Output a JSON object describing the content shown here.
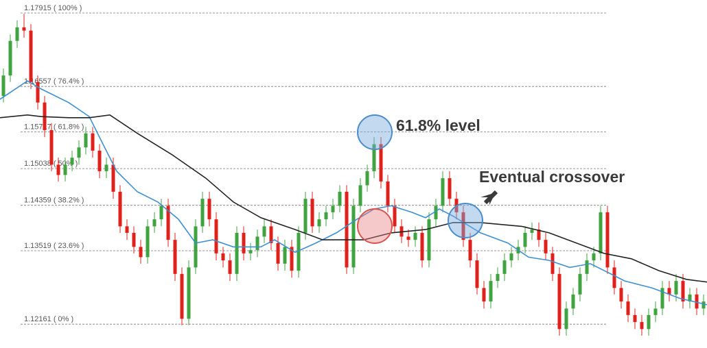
{
  "chart_data": {
    "type": "candlestick",
    "up_color": "#3fa33f",
    "down_color": "#e0201b",
    "xlim": [
      -0.5,
      102.5
    ],
    "ylim": [
      1.1172,
      1.18156
    ],
    "yticks": [
      {
        "value": 1.17915,
        "label": "1.17915 ( 100% )"
      },
      {
        "value": 1.16557,
        "label": "1.16557 ( 76.4% )"
      },
      {
        "value": 1.15717,
        "label": "1.15717 ( 61.8% )"
      },
      {
        "value": 1.15038,
        "label": "1.15038 ( 50% )"
      },
      {
        "value": 1.14359,
        "label": "1.14359 ( 38.2% )"
      },
      {
        "value": 1.13519,
        "label": "1.13519 ( 23.6% )"
      },
      {
        "value": 1.12161,
        "label": "1.12161 ( 0% )"
      }
    ],
    "open": [
      1.1638,
      1.1676,
      1.174,
      1.1765,
      1.1759,
      1.1664,
      1.1626,
      1.1575,
      1.1511,
      1.1492,
      1.1511,
      1.1524,
      1.1543,
      1.1569,
      1.1537,
      1.1499,
      1.1511,
      1.1461,
      1.1397,
      1.1385,
      1.1359,
      1.134,
      1.1397,
      1.141,
      1.1435,
      1.1372,
      1.1309,
      1.1226,
      1.1321,
      1.1397,
      1.1448,
      1.141,
      1.1347,
      1.1334,
      1.1309,
      1.1385,
      1.1347,
      1.1353,
      1.1378,
      1.1397,
      1.1366,
      1.1328,
      1.1359,
      1.1315,
      1.1385,
      1.1448,
      1.1397,
      1.141,
      1.1423,
      1.1435,
      1.1461,
      1.1321,
      1.1435,
      1.1473,
      1.1499,
      1.1549,
      1.148,
      1.1435,
      1.1397,
      1.1378,
      1.1372,
      1.1385,
      1.1334,
      1.141,
      1.1435,
      1.1486,
      1.1448,
      1.1423,
      1.1372,
      1.1334,
      1.1283,
      1.1258,
      1.1296,
      1.1309,
      1.1334,
      1.1347,
      1.1359,
      1.1385,
      1.1391,
      1.1372,
      1.1347,
      1.1309,
      1.1207,
      1.1245,
      1.1271,
      1.1309,
      1.1334,
      1.1347,
      1.1423,
      1.1321,
      1.1283,
      1.1258,
      1.1233,
      1.122,
      1.1207,
      1.1233,
      1.1245,
      1.1283,
      1.1271,
      1.1296,
      1.1258,
      1.1271,
      1.1245
    ],
    "high": [
      1.1689,
      1.1752,
      1.1778,
      1.179,
      1.1771,
      1.1676,
      1.1638,
      1.1588,
      1.1524,
      1.1524,
      1.1537,
      1.1556,
      1.1581,
      1.1581,
      1.1549,
      1.1524,
      1.1524,
      1.1473,
      1.141,
      1.1397,
      1.1372,
      1.141,
      1.1423,
      1.1448,
      1.1448,
      1.1385,
      1.1321,
      1.1334,
      1.141,
      1.1461,
      1.1461,
      1.1423,
      1.1359,
      1.1347,
      1.1397,
      1.1397,
      1.1366,
      1.1391,
      1.141,
      1.141,
      1.1378,
      1.1372,
      1.1372,
      1.1397,
      1.1461,
      1.1461,
      1.1423,
      1.1435,
      1.1448,
      1.1473,
      1.1473,
      1.1448,
      1.1486,
      1.1511,
      1.1562,
      1.1562,
      1.1492,
      1.1448,
      1.141,
      1.1391,
      1.1397,
      1.1397,
      1.1423,
      1.1448,
      1.1499,
      1.1499,
      1.1461,
      1.1435,
      1.1385,
      1.1347,
      1.1296,
      1.1309,
      1.1321,
      1.1347,
      1.1359,
      1.1372,
      1.1397,
      1.1404,
      1.1404,
      1.1385,
      1.1359,
      1.1321,
      1.1258,
      1.1283,
      1.1321,
      1.1347,
      1.1359,
      1.1435,
      1.1435,
      1.1334,
      1.1296,
      1.1271,
      1.1245,
      1.1233,
      1.1245,
      1.1258,
      1.1296,
      1.1296,
      1.1309,
      1.1309,
      1.1283,
      1.1283,
      1.1271
    ],
    "low": [
      1.1626,
      1.1664,
      1.1727,
      1.1746,
      1.1651,
      1.1613,
      1.1562,
      1.1499,
      1.148,
      1.148,
      1.1499,
      1.1511,
      1.153,
      1.1524,
      1.1486,
      1.1486,
      1.1448,
      1.1385,
      1.1372,
      1.1347,
      1.1328,
      1.1328,
      1.1385,
      1.1397,
      1.1359,
      1.1296,
      1.1214,
      1.1214,
      1.1309,
      1.1385,
      1.1397,
      1.1334,
      1.1321,
      1.1296,
      1.1296,
      1.1334,
      1.1334,
      1.134,
      1.1366,
      1.1353,
      1.1315,
      1.1315,
      1.1302,
      1.1302,
      1.1372,
      1.1385,
      1.1385,
      1.1397,
      1.141,
      1.1423,
      1.1309,
      1.1309,
      1.1423,
      1.1461,
      1.1486,
      1.1467,
      1.1423,
      1.1385,
      1.1366,
      1.1359,
      1.1359,
      1.1321,
      1.1321,
      1.1397,
      1.1423,
      1.1435,
      1.141,
      1.1359,
      1.1321,
      1.1271,
      1.1245,
      1.1245,
      1.1283,
      1.1296,
      1.1321,
      1.1334,
      1.1347,
      1.1372,
      1.1359,
      1.1334,
      1.1296,
      1.1195,
      1.1195,
      1.1233,
      1.1258,
      1.1296,
      1.1321,
      1.1334,
      1.1309,
      1.1271,
      1.1245,
      1.122,
      1.1207,
      1.1195,
      1.1195,
      1.122,
      1.1233,
      1.1258,
      1.1258,
      1.1245,
      1.1245,
      1.1233,
      1.1233
    ],
    "close": [
      1.1676,
      1.174,
      1.1765,
      1.1759,
      1.1664,
      1.1626,
      1.1575,
      1.1511,
      1.1492,
      1.1511,
      1.1524,
      1.1543,
      1.1569,
      1.1537,
      1.1499,
      1.1511,
      1.1461,
      1.1397,
      1.1385,
      1.1359,
      1.134,
      1.1397,
      1.141,
      1.1435,
      1.1372,
      1.1309,
      1.1226,
      1.1321,
      1.1397,
      1.1448,
      1.141,
      1.1347,
      1.1334,
      1.1309,
      1.1385,
      1.1347,
      1.1353,
      1.1378,
      1.1397,
      1.1366,
      1.1328,
      1.1359,
      1.1315,
      1.1385,
      1.1448,
      1.1397,
      1.141,
      1.1423,
      1.1435,
      1.1461,
      1.1321,
      1.1435,
      1.1473,
      1.1499,
      1.1549,
      1.148,
      1.1435,
      1.1397,
      1.1378,
      1.1372,
      1.1385,
      1.1334,
      1.141,
      1.1435,
      1.1486,
      1.1448,
      1.1423,
      1.1372,
      1.1334,
      1.1283,
      1.1258,
      1.1296,
      1.1309,
      1.1334,
      1.1347,
      1.1359,
      1.1385,
      1.1391,
      1.1372,
      1.1347,
      1.1309,
      1.1207,
      1.1245,
      1.1271,
      1.1309,
      1.1334,
      1.1347,
      1.1423,
      1.1321,
      1.1283,
      1.1258,
      1.1233,
      1.122,
      1.1207,
      1.1233,
      1.1245,
      1.1283,
      1.1271,
      1.1296,
      1.1258,
      1.1271,
      1.1245,
      1.1258
    ],
    "moving_averages": [
      {
        "color": "#3d8fd1",
        "x": [
          -0.5,
          3.5,
          5.5,
          9.5,
          12.5,
          14.5,
          16.5,
          19.5,
          22.5,
          25.5,
          28,
          30.5,
          33.5,
          37.5,
          39.5,
          42.5,
          45.5,
          48.5,
          51.5,
          54,
          56.5,
          59.5,
          61.5,
          63.5,
          65.5,
          69.5,
          73.5,
          76.5,
          79.5,
          82.5,
          85.5,
          88.5,
          90.5,
          94.5,
          98.5,
          102.5
        ],
        "values": [
          1.1632,
          1.1666,
          1.1651,
          1.1626,
          1.16,
          1.1549,
          1.1499,
          1.1461,
          1.1442,
          1.141,
          1.1366,
          1.1372,
          1.1359,
          1.1359,
          1.1372,
          1.1349,
          1.1366,
          1.1385,
          1.141,
          1.1429,
          1.1435,
          1.1423,
          1.1413,
          1.1429,
          1.1416,
          1.1385,
          1.1366,
          1.134,
          1.1334,
          1.1321,
          1.1328,
          1.1309,
          1.1296,
          1.1283,
          1.1264,
          1.1252
        ]
      },
      {
        "color": "#222222",
        "x": [
          -0.5,
          3.5,
          5.5,
          9.5,
          12.5,
          15.5,
          19.5,
          24.5,
          29.5,
          33.5,
          37.5,
          42.5,
          46.5,
          49.5,
          52.5,
          56.5,
          61.5,
          65.5,
          69.5,
          75.5,
          79.5,
          83.5,
          87.5,
          91.5,
          95.5,
          99.5,
          102.5
        ],
        "values": [
          1.1598,
          1.1603,
          1.16,
          1.1598,
          1.1598,
          1.1603,
          1.1569,
          1.153,
          1.1486,
          1.1442,
          1.1413,
          1.1391,
          1.1372,
          1.1372,
          1.1372,
          1.1385,
          1.1391,
          1.1404,
          1.1404,
          1.1397,
          1.1385,
          1.1366,
          1.1347,
          1.1337,
          1.1315,
          1.1299,
          1.1294
        ]
      }
    ],
    "annotations": [
      "61.8% level",
      "Eventual crossover"
    ]
  }
}
